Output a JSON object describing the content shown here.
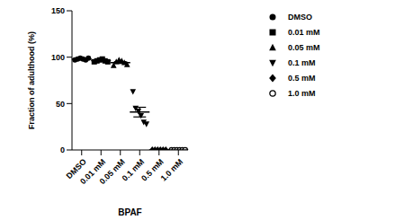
{
  "chart_data": {
    "type": "scatter",
    "x_label": "BPAF",
    "y_label": "Fraction of adulthood (%)",
    "categories": [
      "DMSO",
      "0.01 mM",
      "0.05 mM",
      "0.1 mM",
      "0.5 mM",
      "1.0 mM"
    ],
    "series": [
      {
        "name": "DMSO",
        "marker": "circle",
        "color": "#000000",
        "values": [
          97,
          98,
          99,
          98,
          97,
          99
        ],
        "mean": 98.0,
        "error": 0.4
      },
      {
        "name": "0.01 mM",
        "marker": "square",
        "color": "#000000",
        "values": [
          95,
          96,
          97,
          98,
          96,
          95
        ],
        "mean": 96.2,
        "error": 0.5
      },
      {
        "name": "0.05 mM",
        "marker": "triangle",
        "color": "#000000",
        "values": [
          91,
          95,
          97,
          96,
          94,
          92
        ],
        "mean": 94.2,
        "error": 1.0
      },
      {
        "name": "0.1 mM",
        "marker": "triangle_down",
        "color": "#000000",
        "values": [
          63,
          45,
          42,
          37,
          30,
          28
        ],
        "mean": 40.8,
        "error": 5.2
      },
      {
        "name": "0.5 mM",
        "marker": "diamond",
        "color": "#000000",
        "values": [
          0,
          0,
          0,
          0,
          0,
          0
        ],
        "mean": 0,
        "error": 0
      },
      {
        "name": "1.0 mM",
        "marker": "circle_open",
        "color": "#000000",
        "values": [
          0,
          0,
          0,
          0,
          0,
          0
        ],
        "mean": 0,
        "error": 0
      }
    ],
    "ylim": [
      0,
      150
    ],
    "yticks": [
      0,
      50,
      100,
      150
    ],
    "legend": "right"
  }
}
